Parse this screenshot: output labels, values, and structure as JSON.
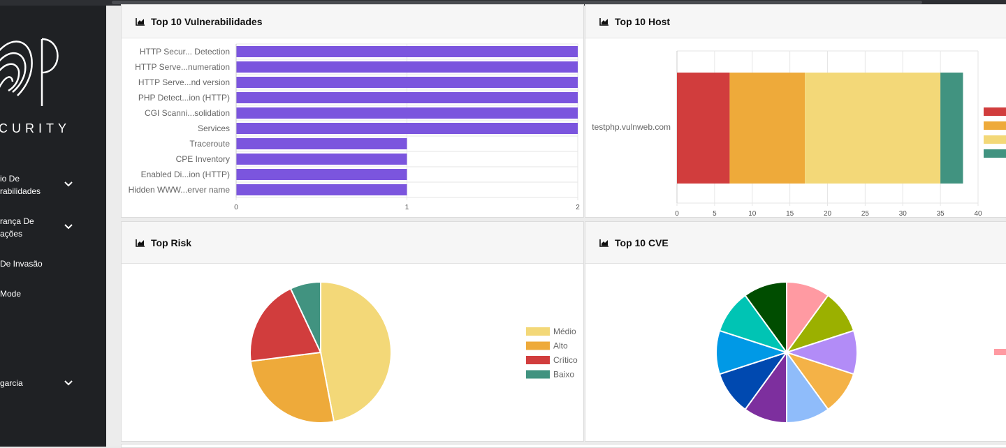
{
  "sidebar": {
    "logo_text": "CURITY",
    "items": [
      {
        "line1": "io De",
        "line2": "rabilidades",
        "chevron": true
      },
      {
        "line1": "rança De",
        "line2": "ações",
        "chevron": true
      },
      {
        "line1": "De Invasão",
        "line2": "",
        "chevron": false
      },
      {
        "line1": "Mode",
        "line2": "",
        "chevron": false
      },
      {
        "line1": "garcia",
        "line2": "",
        "chevron": true
      }
    ]
  },
  "cards": {
    "vuln_title": "Top 10 Vulnerabilidades",
    "host_title": "Top 10 Host",
    "risk_title": "Top Risk",
    "cve_title": "Top 10 CVE"
  },
  "colors": {
    "bar": "#7b55de",
    "critico": "#d13d3d",
    "alto": "#eeaa3a",
    "medio": "#f3d878",
    "baixo": "#419380"
  },
  "chart_data": [
    {
      "type": "bar",
      "orientation": "horizontal",
      "title": "Top 10 Vulnerabilidades",
      "categories": [
        "HTTP Secur... Detection",
        "HTTP Serve...numeration",
        "HTTP Serve...nd version",
        "PHP Detect...ion (HTTP)",
        "CGI Scanni...solidation",
        "Services",
        "Traceroute",
        "CPE Inventory",
        "Enabled Di...ion (HTTP)",
        "Hidden WWW...erver name"
      ],
      "values": [
        2,
        2,
        2,
        2,
        2,
        2,
        1,
        1,
        1,
        1
      ],
      "xlim": [
        0,
        2
      ],
      "xticks": [
        0,
        1,
        2
      ],
      "grid": true
    },
    {
      "type": "bar",
      "orientation": "horizontal",
      "stacked": true,
      "title": "Top 10 Host",
      "categories": [
        "testphp.vulnweb.com"
      ],
      "series": [
        {
          "values": [
            7
          ],
          "color": "#d13d3d"
        },
        {
          "values": [
            10
          ],
          "color": "#eeaa3a"
        },
        {
          "values": [
            18
          ],
          "color": "#f3d878"
        },
        {
          "values": [
            3
          ],
          "color": "#419380"
        }
      ],
      "xlim": [
        0,
        40
      ],
      "xticks": [
        0,
        5,
        10,
        15,
        20,
        25,
        30,
        35,
        40
      ],
      "grid": true,
      "legend": "right"
    },
    {
      "type": "pie",
      "title": "Top Risk",
      "labels": [
        "Médio",
        "Alto",
        "Crítico",
        "Baixo"
      ],
      "values": [
        47,
        26,
        20,
        7
      ],
      "colors": [
        "#f3d878",
        "#eeaa3a",
        "#d13d3d",
        "#419380"
      ],
      "legend": "right"
    },
    {
      "type": "pie",
      "title": "Top 10 CVE",
      "values": [
        1,
        1,
        1,
        1,
        1,
        1,
        1,
        1,
        1,
        1
      ],
      "colors": [
        "#ff9aa2",
        "#9bb000",
        "#b28cf7",
        "#f4b247",
        "#8fbcfa",
        "#7d2f9e",
        "#0049b0",
        "#0099e6",
        "#00c4b4",
        "#004d00"
      ],
      "legend": "right"
    }
  ]
}
